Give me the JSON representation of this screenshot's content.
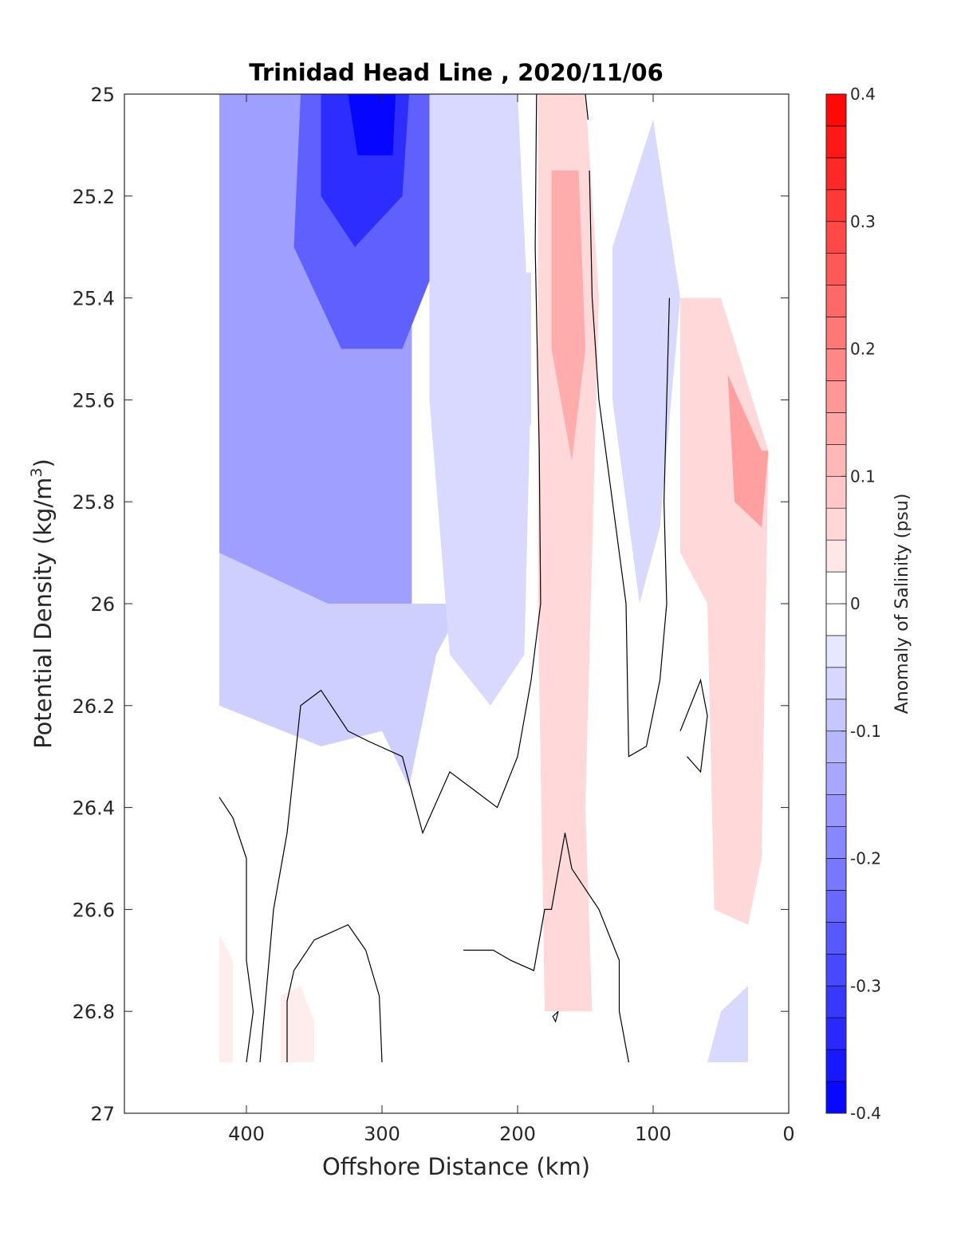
{
  "chart_data": {
    "type": "contourf",
    "title": "Trinidad Head Line , 2020/11/06",
    "xlabel": "Offshore Distance (km)",
    "ylabel_main": "Potential Density (kg/m",
    "ylabel_sup": "3",
    "ylabel_close": ")",
    "xlim": [
      490,
      0
    ],
    "ylim": [
      25,
      27
    ],
    "y_reversed": true,
    "x_reversed": true,
    "x_ticks": [
      400,
      300,
      200,
      100,
      0
    ],
    "x_tick_labels": [
      "400",
      "300",
      "200",
      "100",
      "0"
    ],
    "y_ticks": [
      25,
      25.2,
      25.4,
      25.6,
      25.8,
      26,
      26.2,
      26.4,
      26.6,
      26.8,
      27
    ],
    "y_tick_labels": [
      "25",
      "25.2",
      "25.4",
      "25.6",
      "25.8",
      "26",
      "26.2",
      "26.4",
      "26.6",
      "26.8",
      "27"
    ],
    "colorbar": {
      "label": "Anomaly of Salinity (psu)",
      "range": [
        -0.4,
        0.4
      ],
      "step": 0.025,
      "ticks": [
        0.4,
        0.3,
        0.2,
        0.1,
        0,
        -0.1,
        -0.2,
        -0.3,
        -0.4
      ],
      "tick_labels": [
        "0.4",
        "0.3",
        "0.2",
        "0.1",
        "0",
        "-0.1",
        "-0.2",
        "-0.3",
        "-0.4"
      ],
      "neg_color": "#0000ff",
      "pos_color": "#ff0000",
      "zero_color": "#ffffff"
    },
    "regions": [
      {
        "name": "fresh-core-offshore",
        "level": -0.15,
        "points": [
          [
            420,
            25
          ],
          [
            278,
            25
          ],
          [
            278,
            26.02
          ],
          [
            345,
            26.02
          ],
          [
            420,
            26.02
          ]
        ]
      },
      {
        "name": "fresh-tongue-deep",
        "level": -0.075,
        "points": [
          [
            420,
            25.9
          ],
          [
            420,
            26.2
          ],
          [
            345,
            26.28
          ],
          [
            300,
            26.25
          ],
          [
            280,
            26.36
          ],
          [
            260,
            26.1
          ],
          [
            240,
            26.0
          ],
          [
            340,
            26.0
          ]
        ]
      },
      {
        "name": "fresh-core-upper",
        "level": -0.25,
        "points": [
          [
            360,
            25
          ],
          [
            265,
            25
          ],
          [
            255,
            25.3
          ],
          [
            285,
            25.5
          ],
          [
            330,
            25.5
          ],
          [
            365,
            25.3
          ]
        ]
      },
      {
        "name": "fresh-core-max",
        "level": -0.33,
        "points": [
          [
            345,
            25
          ],
          [
            280,
            25
          ],
          [
            285,
            25.2
          ],
          [
            320,
            25.3
          ],
          [
            345,
            25.2
          ]
        ]
      },
      {
        "name": "fresh-peak",
        "level": -0.39,
        "points": [
          [
            325,
            25
          ],
          [
            290,
            25
          ],
          [
            292,
            25.12
          ],
          [
            318,
            25.12
          ]
        ]
      },
      {
        "name": "fresh-shelf-mid",
        "level": -0.06,
        "points": [
          [
            265,
            25
          ],
          [
            200,
            25
          ],
          [
            190,
            25.55
          ],
          [
            195,
            26.1
          ],
          [
            220,
            26.2
          ],
          [
            250,
            26.1
          ],
          [
            265,
            25.6
          ]
        ]
      },
      {
        "name": "fresh-inner-lobe",
        "level": -0.06,
        "points": [
          [
            205,
            25.35
          ],
          [
            190,
            25.35
          ],
          [
            190,
            25.65
          ],
          [
            205,
            25.65
          ]
        ]
      },
      {
        "name": "fresh-nearshore-band",
        "level": -0.06,
        "points": [
          [
            130,
            25.3
          ],
          [
            100,
            25.05
          ],
          [
            80,
            25.4
          ],
          [
            95,
            25.85
          ],
          [
            110,
            26.0
          ],
          [
            130,
            25.6
          ]
        ]
      },
      {
        "name": "fresh-bottom-nearshore",
        "level": -0.06,
        "points": [
          [
            60,
            26.9
          ],
          [
            30,
            26.9
          ],
          [
            30,
            26.75
          ],
          [
            50,
            26.8
          ]
        ]
      },
      {
        "name": "salty-core-inner",
        "level": 0.06,
        "points": [
          [
            185,
            25
          ],
          [
            150,
            25
          ],
          [
            140,
            25.4
          ],
          [
            145,
            25.9
          ],
          [
            150,
            26.4
          ],
          [
            145,
            26.8
          ],
          [
            180,
            26.8
          ],
          [
            185,
            26.0
          ]
        ]
      },
      {
        "name": "salty-core-max",
        "level": 0.13,
        "points": [
          [
            175,
            25.15
          ],
          [
            155,
            25.15
          ],
          [
            150,
            25.5
          ],
          [
            160,
            25.72
          ],
          [
            175,
            25.5
          ]
        ]
      },
      {
        "name": "salty-nearshore",
        "level": 0.06,
        "points": [
          [
            80,
            25.4
          ],
          [
            50,
            25.4
          ],
          [
            15,
            25.7
          ],
          [
            20,
            26.5
          ],
          [
            30,
            26.63
          ],
          [
            55,
            26.6
          ],
          [
            60,
            26.0
          ],
          [
            80,
            25.9
          ]
        ]
      },
      {
        "name": "salty-nearshore-core",
        "level": 0.15,
        "points": [
          [
            45,
            25.55
          ],
          [
            20,
            25.7
          ],
          [
            15,
            25.7
          ],
          [
            20,
            25.85
          ],
          [
            40,
            25.8
          ]
        ]
      },
      {
        "name": "salty-bottom-offshore",
        "level": 0.03,
        "points": [
          [
            420,
            26.65
          ],
          [
            410,
            26.7
          ],
          [
            410,
            26.9
          ],
          [
            420,
            26.9
          ]
        ]
      },
      {
        "name": "salty-bottom-mid",
        "level": 0.03,
        "points": [
          [
            375,
            26.77
          ],
          [
            360,
            26.75
          ],
          [
            350,
            26.82
          ],
          [
            350,
            26.9
          ],
          [
            375,
            26.9
          ]
        ]
      }
    ],
    "zero_contours": [
      {
        "name": "zero-contour-inner-front",
        "points": [
          [
            186,
            25
          ],
          [
            187,
            25.3
          ],
          [
            184,
            25.7
          ],
          [
            183,
            26.0
          ],
          [
            190,
            26.15
          ],
          [
            200,
            26.3
          ],
          [
            215,
            26.4
          ],
          [
            230,
            26.37
          ],
          [
            250,
            26.33
          ],
          [
            270,
            26.45
          ],
          [
            285,
            26.3
          ],
          [
            310,
            26.27
          ],
          [
            325,
            26.25
          ],
          [
            345,
            26.17
          ],
          [
            360,
            26.2
          ],
          [
            370,
            26.45
          ],
          [
            380,
            26.6
          ],
          [
            390,
            26.9
          ]
        ]
      },
      {
        "name": "zero-contour-offshore-edge",
        "points": [
          [
            420,
            26.38
          ],
          [
            410,
            26.42
          ],
          [
            400,
            26.5
          ],
          [
            400,
            26.7
          ],
          [
            395,
            26.8
          ],
          [
            400,
            26.9
          ]
        ]
      },
      {
        "name": "zero-contour-shelf-a",
        "points": [
          [
            150,
            25
          ],
          [
            148,
            25.05
          ]
        ]
      },
      {
        "name": "zero-contour-shelf-b",
        "points": [
          [
            147,
            25.15
          ],
          [
            145,
            25.4
          ],
          [
            140,
            25.6
          ],
          [
            130,
            25.8
          ],
          [
            120,
            26.0
          ],
          [
            118,
            26.3
          ],
          [
            105,
            26.28
          ],
          [
            95,
            26.15
          ],
          [
            90,
            26.0
          ],
          [
            92,
            25.8
          ],
          [
            88,
            25.4
          ]
        ]
      },
      {
        "name": "zero-contour-nearshore",
        "points": [
          [
            80,
            26.25
          ],
          [
            65,
            26.15
          ],
          [
            60,
            26.22
          ],
          [
            65,
            26.33
          ],
          [
            75,
            26.3
          ]
        ]
      },
      {
        "name": "zero-contour-bottom-dome",
        "points": [
          [
            300,
            26.9
          ],
          [
            302,
            26.77
          ],
          [
            312,
            26.68
          ],
          [
            325,
            26.63
          ],
          [
            350,
            26.66
          ],
          [
            365,
            26.72
          ],
          [
            370,
            26.78
          ],
          [
            370,
            26.9
          ]
        ]
      },
      {
        "name": "zero-contour-bottom-shelf",
        "points": [
          [
            118,
            26.9
          ],
          [
            125,
            26.8
          ],
          [
            125,
            26.7
          ],
          [
            140,
            26.6
          ],
          [
            160,
            26.52
          ],
          [
            165,
            26.45
          ],
          [
            175,
            26.6
          ],
          [
            180,
            26.6
          ],
          [
            188,
            26.72
          ],
          [
            205,
            26.7
          ],
          [
            218,
            26.68
          ],
          [
            240,
            26.68
          ]
        ]
      },
      {
        "name": "zero-contour-spot",
        "points": [
          [
            170,
            26.8
          ],
          [
            174,
            26.81
          ],
          [
            172,
            26.82
          ],
          [
            170,
            26.8
          ]
        ]
      }
    ]
  }
}
